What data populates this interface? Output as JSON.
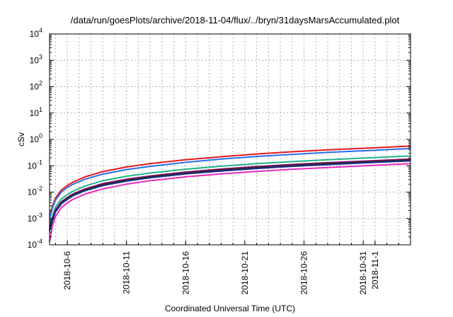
{
  "chart_data": {
    "type": "line",
    "title": "/data/run/goesPlots/archive/2018-11-04/flux/../bryn/31daysMarsAccumulated.plot",
    "xlabel": "Coordinated Universal Time (UTC)",
    "ylabel": "cSv",
    "yscale": "log",
    "ylim": [
      0.0001,
      10000
    ],
    "xlim": [
      "2018-10-04T12:00",
      "2018-11-04T00:00"
    ],
    "grid": true,
    "y_ticks": [
      {
        "base": "10",
        "exp": "-4"
      },
      {
        "base": "10",
        "exp": "-3"
      },
      {
        "base": "10",
        "exp": "-2"
      },
      {
        "base": "10",
        "exp": "-1"
      },
      {
        "base": "10",
        "exp": "0"
      },
      {
        "base": "10",
        "exp": "1"
      },
      {
        "base": "10",
        "exp": "2"
      },
      {
        "base": "10",
        "exp": "3"
      },
      {
        "base": "10",
        "exp": "4"
      }
    ],
    "x_ticks": [
      "2018-10-6",
      "2018-10-11",
      "2018-10-16",
      "2018-10-21",
      "2018-10-26",
      "2018-10-31",
      "2018-11-1"
    ],
    "x": [
      "2018-10-04T12:00",
      "2018-10-04T18:00",
      "2018-10-05T00:00",
      "2018-10-05T12:00",
      "2018-10-06T00:00",
      "2018-10-06T12:00",
      "2018-10-07T12:00",
      "2018-10-09T00:00",
      "2018-10-11T00:00",
      "2018-10-13T00:00",
      "2018-10-16T00:00",
      "2018-10-19T00:00",
      "2018-10-22T00:00",
      "2018-10-25T00:00",
      "2018-10-28T00:00",
      "2018-10-31T00:00",
      "2018-11-04T00:00"
    ],
    "series": [
      {
        "color": "#e41a1c",
        "values": [
          0.0012,
          0.003,
          0.006,
          0.012,
          0.018,
          0.024,
          0.038,
          0.06,
          0.09,
          0.12,
          0.17,
          0.22,
          0.28,
          0.34,
          0.4,
          0.46,
          0.56
        ]
      },
      {
        "color": "#2b6ee8",
        "values": [
          0.001,
          0.0025,
          0.005,
          0.01,
          0.015,
          0.02,
          0.031,
          0.048,
          0.072,
          0.095,
          0.135,
          0.18,
          0.225,
          0.27,
          0.32,
          0.37,
          0.45
        ]
      },
      {
        "color": "#1fb38a",
        "values": [
          0.0005,
          0.0013,
          0.0027,
          0.0055,
          0.008,
          0.011,
          0.017,
          0.027,
          0.04,
          0.053,
          0.074,
          0.096,
          0.12,
          0.144,
          0.17,
          0.196,
          0.236
        ]
      },
      {
        "color": "#8e0f6a",
        "values": [
          0.0004,
          0.001,
          0.0021,
          0.0043,
          0.0063,
          0.0086,
          0.0133,
          0.021,
          0.031,
          0.041,
          0.058,
          0.075,
          0.093,
          0.112,
          0.131,
          0.15,
          0.18
        ]
      },
      {
        "color": "#2a2a2a",
        "values": [
          0.00037,
          0.00093,
          0.0019,
          0.004,
          0.0058,
          0.008,
          0.0123,
          0.0193,
          0.0285,
          0.038,
          0.053,
          0.069,
          0.086,
          0.103,
          0.121,
          0.139,
          0.166
        ]
      },
      {
        "color": "#1f2d8f",
        "values": [
          0.00033,
          0.00085,
          0.00175,
          0.0036,
          0.0053,
          0.0073,
          0.0113,
          0.0177,
          0.026,
          0.035,
          0.049,
          0.063,
          0.079,
          0.095,
          0.111,
          0.128,
          0.153
        ]
      },
      {
        "color": "#e62bbd",
        "values": [
          0.00013,
          0.00055,
          0.0012,
          0.0026,
          0.0039,
          0.0054,
          0.0084,
          0.0133,
          0.02,
          0.027,
          0.038,
          0.049,
          0.061,
          0.073,
          0.086,
          0.099,
          0.12
        ]
      }
    ]
  }
}
